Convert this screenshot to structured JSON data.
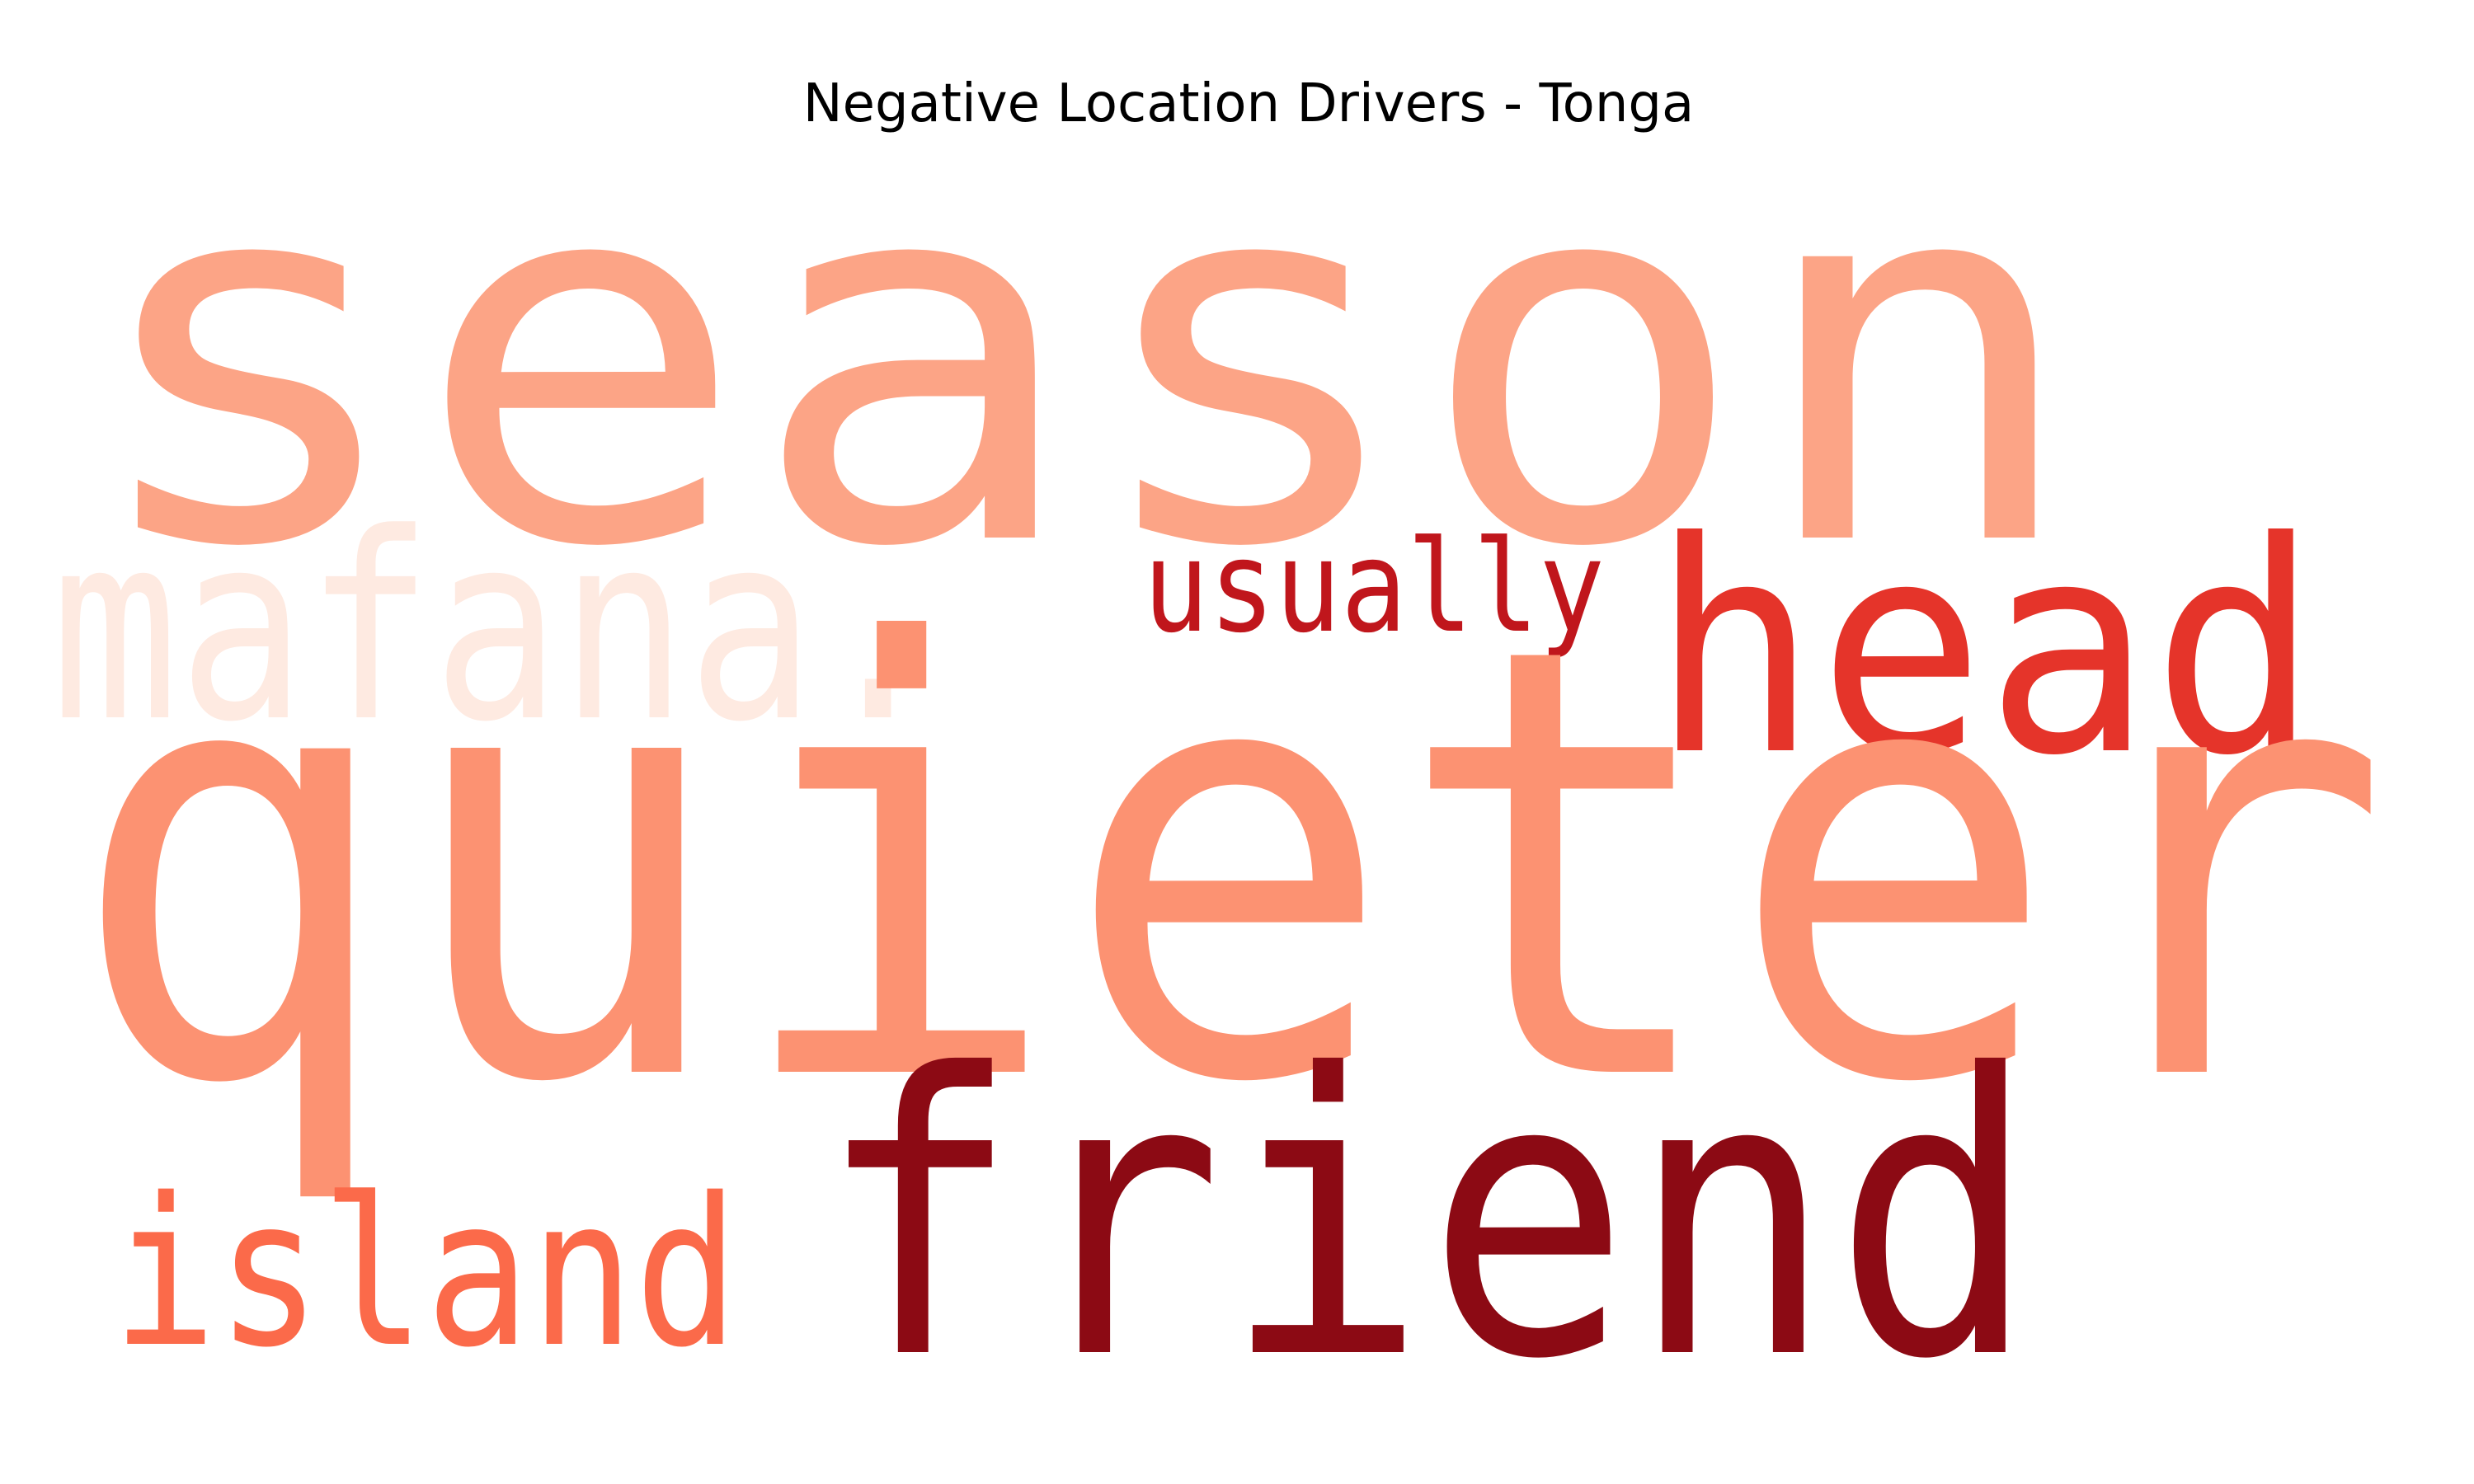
{
  "chart_data": {
    "type": "wordcloud",
    "title": "Negative Location Drivers - Tonga",
    "colormap": "Reds",
    "words": [
      {
        "text": "quieter",
        "color": "#fc9272"
      },
      {
        "text": "season",
        "color": "#fca486"
      },
      {
        "text": "friend",
        "color": "#8c0a14"
      },
      {
        "text": "head",
        "color": "#e5342a"
      },
      {
        "text": "island",
        "color": "#fb6a4a"
      },
      {
        "text": "mafana.",
        "color": "#feeae1"
      },
      {
        "text": "usually",
        "color": "#c0161c"
      }
    ]
  }
}
